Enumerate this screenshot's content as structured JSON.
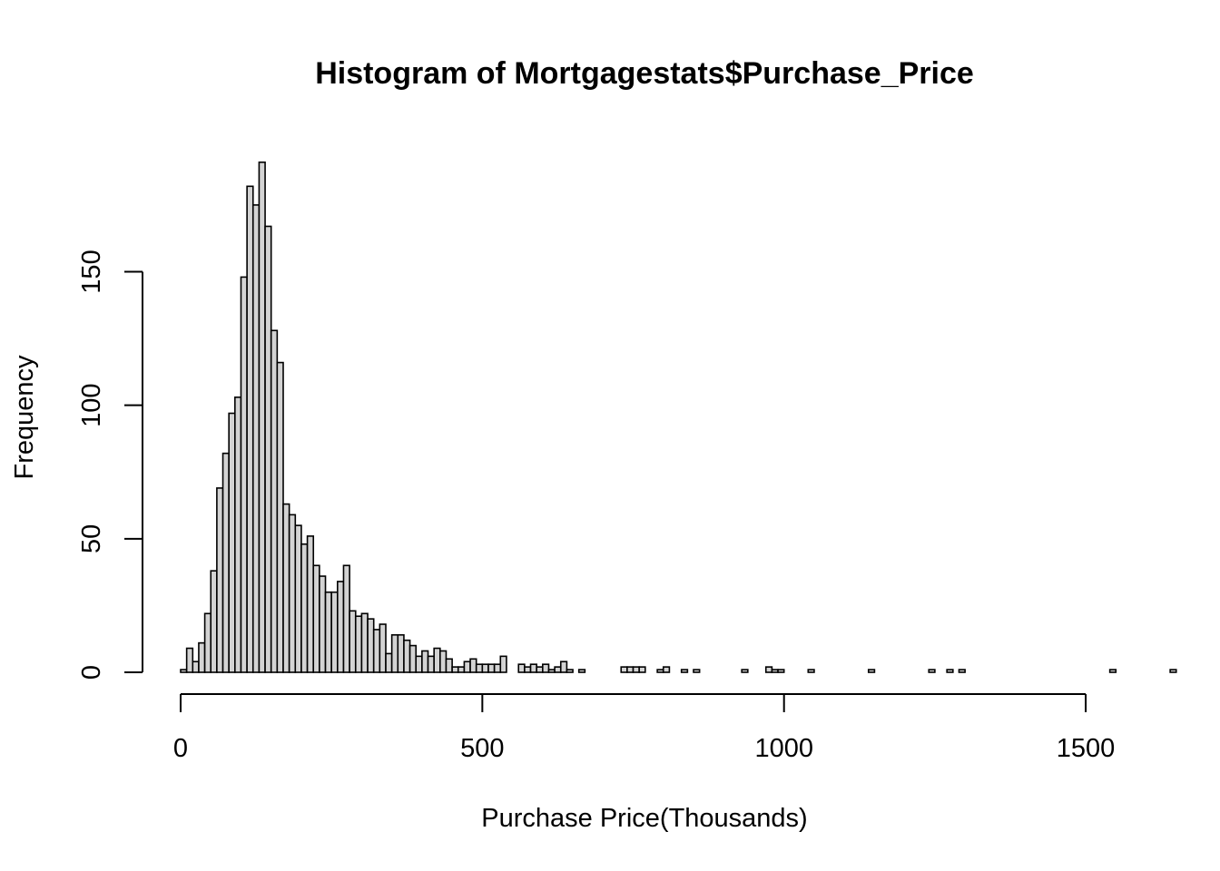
{
  "chart_data": {
    "type": "bar",
    "title": "Histogram of Mortgagestats$Purchase_Price",
    "xlabel": "Purchase Price(Thousands)",
    "ylabel": "Frequency",
    "bin_width": 10,
    "xlim": [
      0,
      1540
    ],
    "ylim": [
      0,
      190
    ],
    "x_ticks": [
      0,
      500,
      1000,
      1500
    ],
    "y_ticks": [
      0,
      50,
      100,
      150
    ],
    "bar_color": "#d3d3d3",
    "grid": false,
    "legend": "none",
    "counts": [
      1,
      9,
      4,
      11,
      22,
      38,
      69,
      82,
      97,
      103,
      148,
      182,
      175,
      191,
      167,
      128,
      116,
      63,
      59,
      55,
      48,
      51,
      40,
      36,
      30,
      30,
      34,
      40,
      23,
      21,
      22,
      20,
      16,
      18,
      7,
      14,
      14,
      12,
      10,
      6,
      8,
      6,
      9,
      8,
      5,
      2,
      2,
      4,
      5,
      3,
      3,
      3,
      3,
      6,
      0,
      0,
      3,
      2,
      3,
      2,
      3,
      1,
      2,
      4,
      1,
      0,
      1,
      0,
      0,
      0,
      0,
      0,
      0,
      2,
      2,
      2,
      2,
      0,
      0,
      1,
      2,
      0,
      0,
      1,
      0,
      1,
      0,
      0,
      0,
      0,
      0,
      0,
      0,
      1,
      0,
      0,
      0,
      2,
      1,
      1,
      0,
      0,
      0,
      0,
      1,
      0,
      0,
      0,
      0,
      0,
      0,
      0,
      0,
      0,
      1,
      0,
      0,
      0,
      0,
      0,
      0,
      0,
      0,
      0,
      1,
      0,
      0,
      1,
      0,
      1,
      0,
      0,
      0,
      0,
      0,
      0,
      0,
      0,
      0,
      0,
      0,
      0,
      0,
      0,
      0,
      0,
      0,
      0,
      0,
      0,
      0,
      0,
      0,
      0,
      1,
      0,
      0,
      0,
      0,
      0,
      0,
      0,
      0,
      0,
      1
    ]
  }
}
